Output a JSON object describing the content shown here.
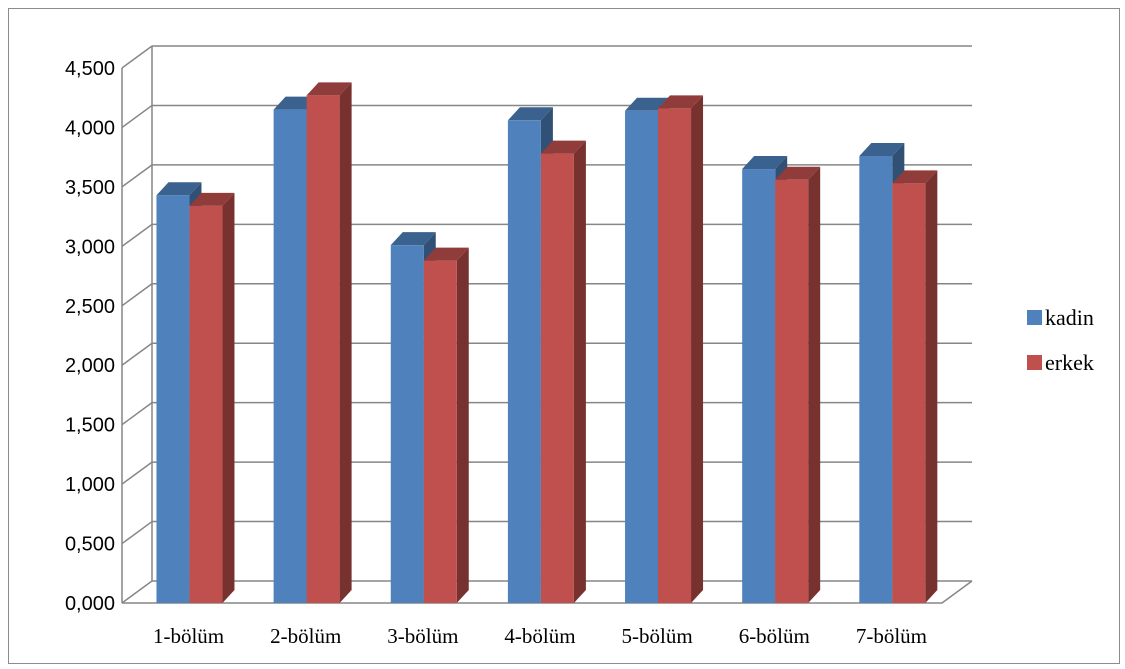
{
  "chart_data": {
    "type": "bar",
    "categories": [
      "1-bölüm",
      "2-bölüm",
      "3-bölüm",
      "4-bölüm",
      "5-bölüm",
      "6-bölüm",
      "7-bölüm"
    ],
    "series": [
      {
        "name": "kadin",
        "color": "#4f81bd",
        "values": [
          3.43,
          4.15,
          3.01,
          4.06,
          4.14,
          3.65,
          3.76
        ]
      },
      {
        "name": "erkek",
        "color": "#c0504d",
        "values": [
          3.34,
          4.27,
          2.88,
          3.78,
          4.16,
          3.56,
          3.53
        ]
      }
    ],
    "ylim": [
      0,
      4.5
    ],
    "yticks": [
      "0,000",
      "0,500",
      "1,000",
      "1,500",
      "2,000",
      "2,500",
      "3,000",
      "3,500",
      "4,000",
      "4,500"
    ],
    "grid": true,
    "legend_position": "right",
    "title": "",
    "xlabel": "",
    "ylabel": ""
  }
}
